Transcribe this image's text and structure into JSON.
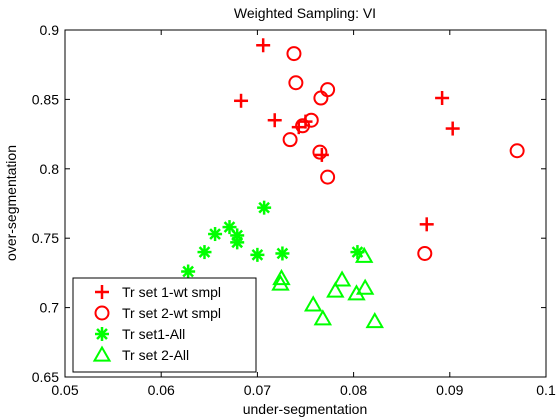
{
  "chart_data": {
    "type": "scatter",
    "title": "Weighted Sampling: VI",
    "xlabel": "under-segmentation",
    "ylabel": "over-segmentation",
    "xlim": [
      0.05,
      0.1
    ],
    "ylim": [
      0.65,
      0.9
    ],
    "xticks": [
      "0.05",
      "0.06",
      "0.07",
      "0.08",
      "0.09",
      "0.1"
    ],
    "yticks": [
      "0.65",
      "0.7",
      "0.75",
      "0.8",
      "0.85",
      "0.9"
    ],
    "grid": false,
    "legend_position": "bottom-left",
    "series": [
      {
        "name": "Tr set 1-wt smpl",
        "marker": "plus",
        "color": "#ff0000",
        "points": [
          [
            0.0706,
            0.889
          ],
          [
            0.0683,
            0.849
          ],
          [
            0.0718,
            0.835
          ],
          [
            0.0743,
            0.83
          ],
          [
            0.075,
            0.834
          ],
          [
            0.0767,
            0.81
          ],
          [
            0.0892,
            0.851
          ],
          [
            0.0903,
            0.829
          ],
          [
            0.0876,
            0.76
          ]
        ]
      },
      {
        "name": "Tr set 2-wt smpl",
        "marker": "circle",
        "color": "#ff0000",
        "points": [
          [
            0.0738,
            0.883
          ],
          [
            0.074,
            0.862
          ],
          [
            0.0773,
            0.857
          ],
          [
            0.0766,
            0.851
          ],
          [
            0.0756,
            0.835
          ],
          [
            0.0747,
            0.831
          ],
          [
            0.0734,
            0.821
          ],
          [
            0.0765,
            0.812
          ],
          [
            0.0773,
            0.794
          ],
          [
            0.097,
            0.813
          ],
          [
            0.0874,
            0.739
          ]
        ]
      },
      {
        "name": "Tr set1-All",
        "marker": "asterisk",
        "color": "#00ff00",
        "points": [
          [
            0.0707,
            0.772
          ],
          [
            0.0671,
            0.758
          ],
          [
            0.0679,
            0.752
          ],
          [
            0.0679,
            0.747
          ],
          [
            0.0656,
            0.753
          ],
          [
            0.0645,
            0.74
          ],
          [
            0.07,
            0.738
          ],
          [
            0.0726,
            0.739
          ],
          [
            0.0628,
            0.726
          ],
          [
            0.0804,
            0.74
          ]
        ]
      },
      {
        "name": "Tr set 2-All",
        "marker": "triangle",
        "color": "#00ff00",
        "points": [
          [
            0.0811,
            0.737
          ],
          [
            0.0725,
            0.721
          ],
          [
            0.0724,
            0.717
          ],
          [
            0.0788,
            0.72
          ],
          [
            0.0781,
            0.712
          ],
          [
            0.0812,
            0.714
          ],
          [
            0.0803,
            0.71
          ],
          [
            0.0758,
            0.702
          ],
          [
            0.0768,
            0.692
          ],
          [
            0.0822,
            0.69
          ]
        ]
      }
    ]
  }
}
